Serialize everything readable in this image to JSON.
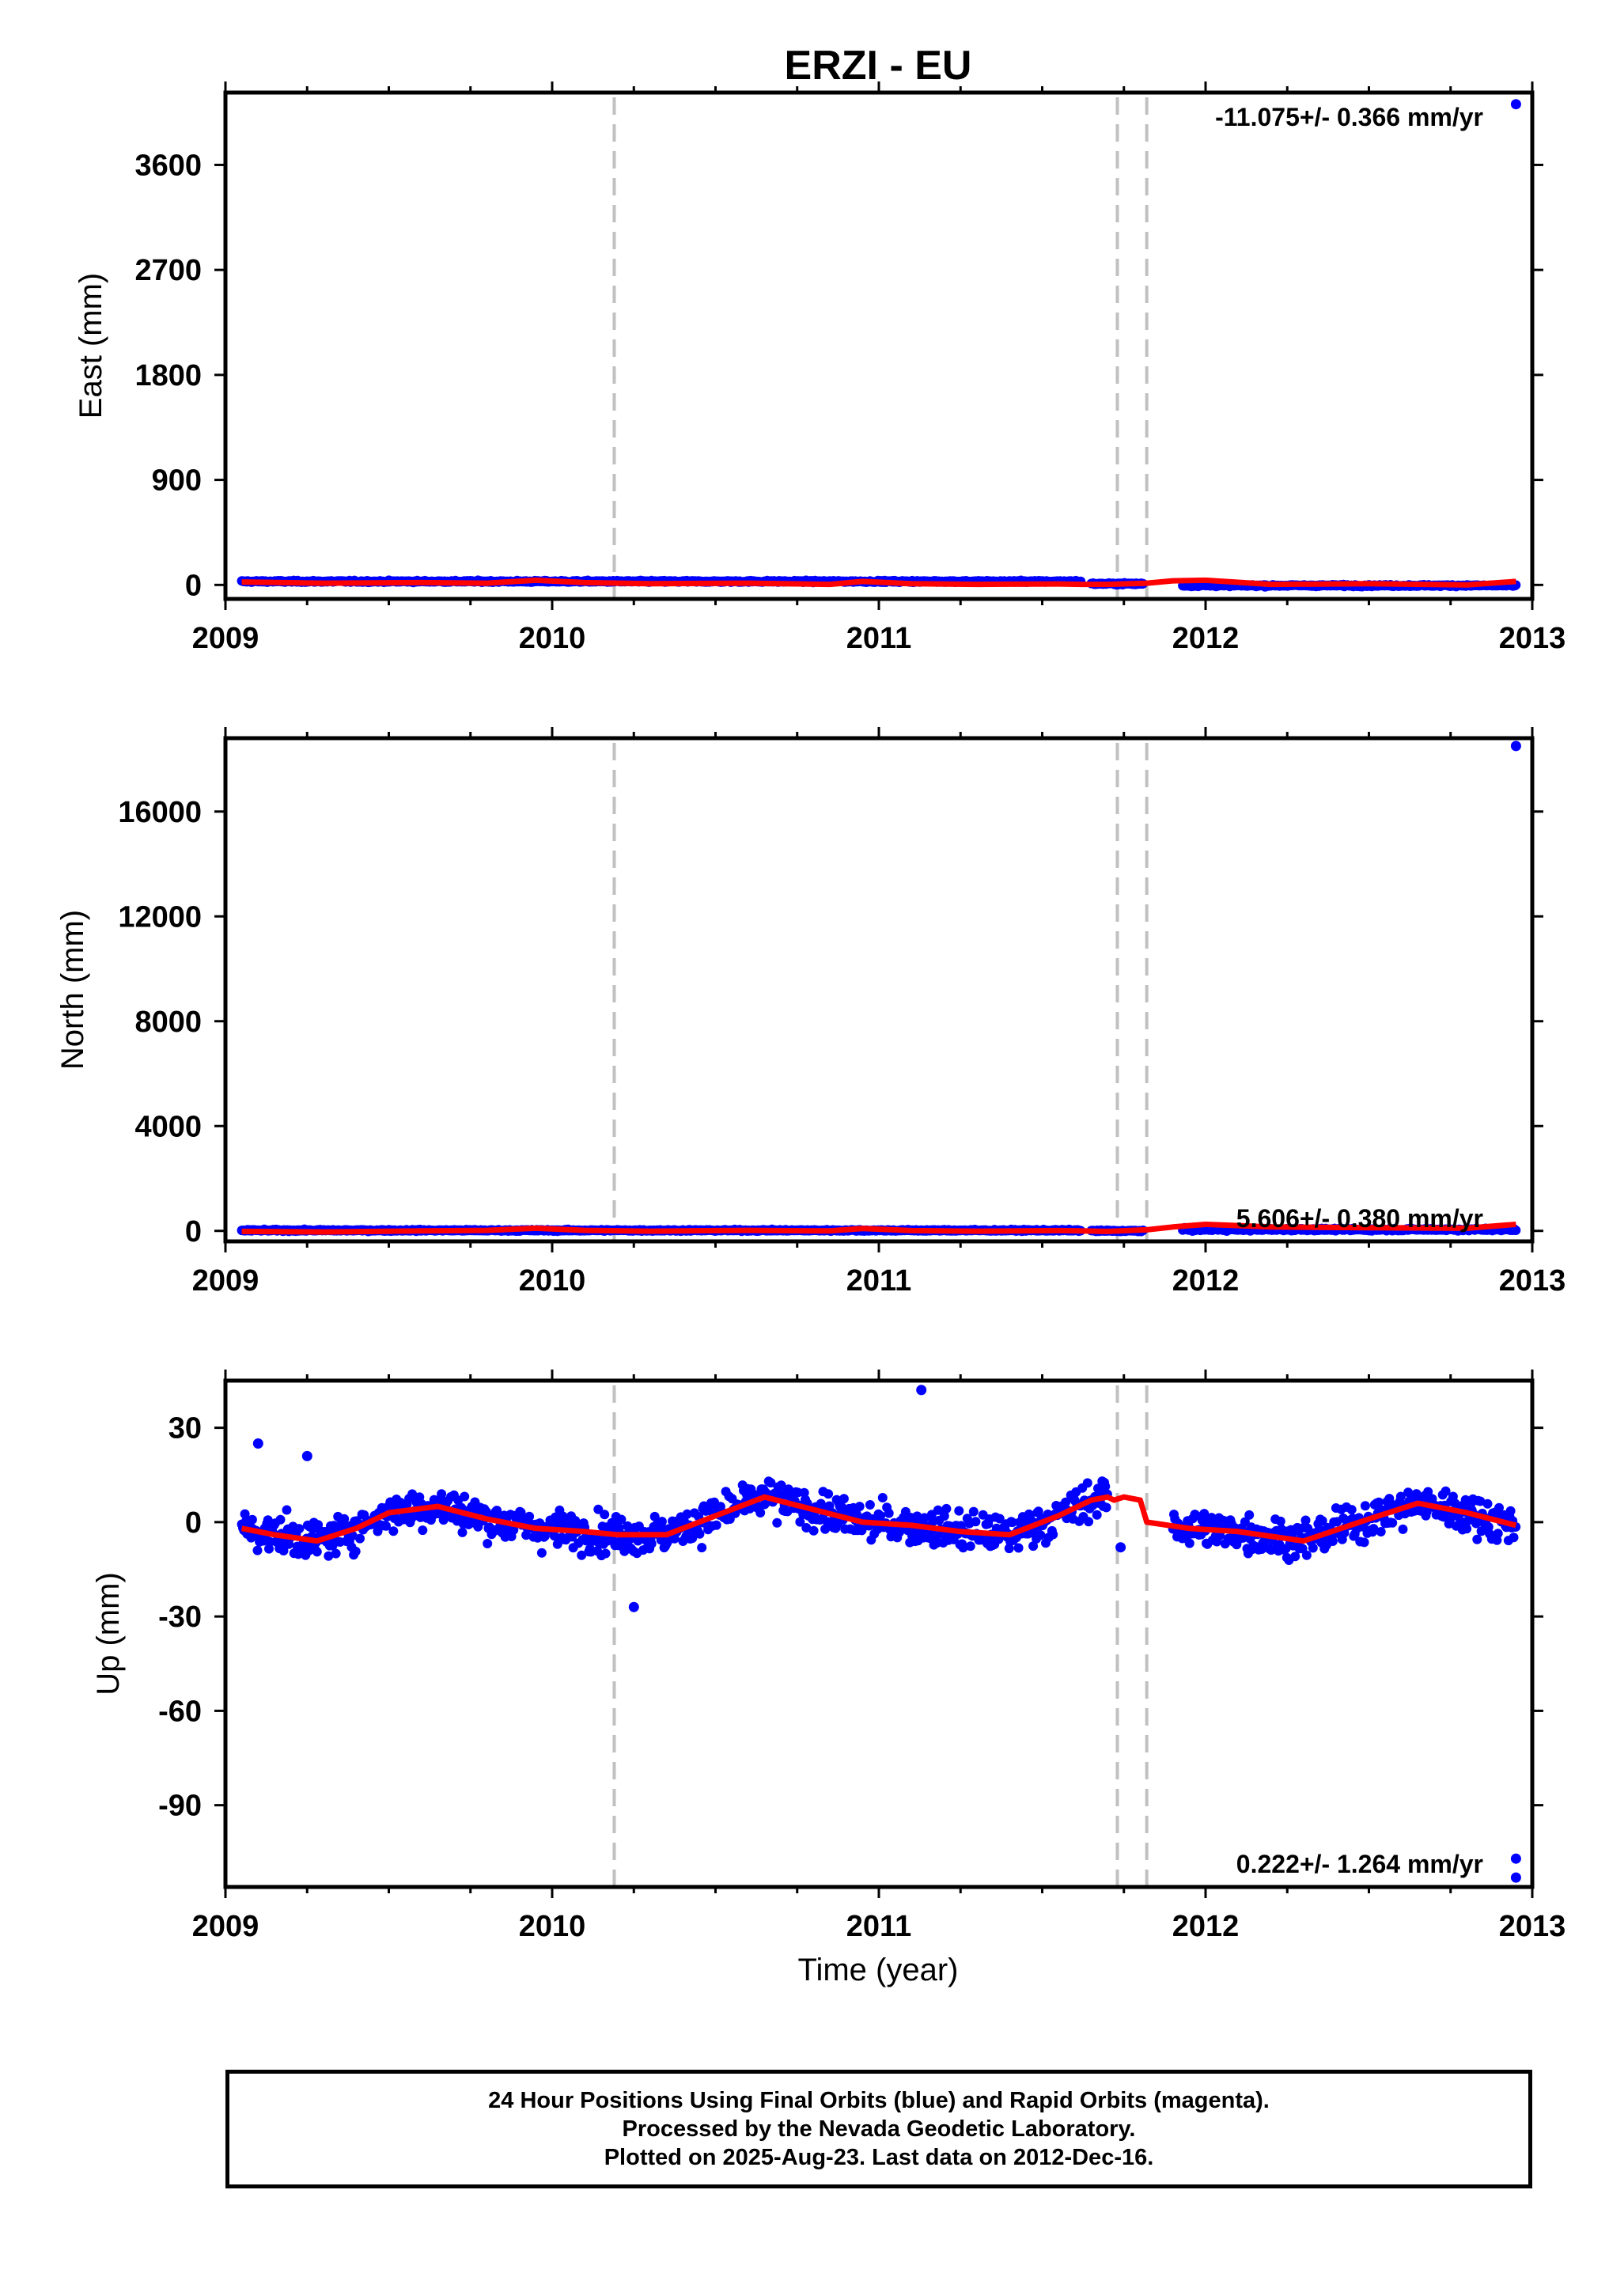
{
  "title": "ERZI - EU",
  "xlabel": "Time (year)",
  "footer": {
    "line1": "24 Hour Positions Using Final Orbits (blue) and Rapid Orbits (magenta).",
    "line2": "Processed by the Nevada Geodetic Laboratory.",
    "line3": "Plotted on 2025-Aug-23. Last data on 2012-Dec-16."
  },
  "colors": {
    "data": "#0000ff",
    "model": "#ff0000",
    "steps": "#c0c0c0",
    "axis": "#000000"
  },
  "chart_data": [
    {
      "type": "scatter",
      "component": "East",
      "ylabel": "East (mm)",
      "rate_text": "-11.075+/- 0.366 mm/yr",
      "xlim": [
        2009,
        2013
      ],
      "ylim": [
        -120,
        4220
      ],
      "yticks": [
        0,
        900,
        1800,
        2700,
        3600
      ],
      "xticks": [
        2009,
        2010,
        2011,
        2012,
        2013
      ],
      "step_lines": [
        2010.19,
        2011.73,
        2011.82
      ],
      "outliers": [
        [
          2012.95,
          4120
        ]
      ],
      "data_segments": [
        [
          2009.05,
          2011.62,
          30,
          5
        ],
        [
          2011.65,
          2011.81,
          10,
          5
        ],
        [
          2011.93,
          2012.95,
          -5,
          5
        ]
      ],
      "model": {
        "x": [
          2009.05,
          2009.3,
          2009.6,
          2009.8,
          2009.95,
          2010.1,
          2010.3,
          2010.6,
          2010.85,
          2010.95,
          2011.1,
          2011.3,
          2011.55,
          2011.62,
          2011.7,
          2011.82,
          2011.9,
          2012.0,
          2012.2,
          2012.5,
          2012.8,
          2012.95
        ],
        "y": [
          25,
          15,
          20,
          15,
          40,
          20,
          10,
          15,
          5,
          30,
          10,
          5,
          8,
          5,
          5,
          15,
          35,
          40,
          5,
          10,
          0,
          30
        ]
      }
    },
    {
      "type": "scatter",
      "component": "North",
      "ylabel": "North (mm)",
      "rate_text": "5.606+/- 0.380 mm/yr",
      "xlim": [
        2009,
        2013
      ],
      "ylim": [
        -400,
        18800
      ],
      "yticks": [
        0,
        4000,
        8000,
        12000,
        16000
      ],
      "xticks": [
        2009,
        2010,
        2011,
        2012,
        2013
      ],
      "step_lines": [
        2010.19,
        2011.73,
        2011.82
      ],
      "outliers": [
        [
          2012.95,
          18500
        ]
      ],
      "data_segments": [
        [
          2009.05,
          2011.62,
          20,
          20
        ],
        [
          2011.65,
          2011.81,
          0,
          20
        ],
        [
          2011.93,
          2012.95,
          50,
          30
        ]
      ],
      "model": {
        "x": [
          2009.05,
          2009.3,
          2009.6,
          2009.8,
          2009.95,
          2010.1,
          2010.3,
          2010.6,
          2010.85,
          2010.95,
          2011.1,
          2011.3,
          2011.55,
          2011.62,
          2011.7,
          2011.82,
          2011.9,
          2012.0,
          2012.2,
          2012.5,
          2012.8,
          2012.95
        ],
        "y": [
          -20,
          -40,
          0,
          20,
          100,
          20,
          -10,
          20,
          0,
          90,
          10,
          -10,
          10,
          0,
          -20,
          40,
          150,
          250,
          150,
          120,
          100,
          250
        ]
      }
    },
    {
      "type": "scatter",
      "component": "Up",
      "ylabel": "Up (mm)",
      "rate_text": "0.222+/- 1.264 mm/yr",
      "xlim": [
        2009,
        2013
      ],
      "ylim": [
        -116,
        45
      ],
      "yticks": [
        -90,
        -60,
        -30,
        0,
        30
      ],
      "xticks": [
        2009,
        2010,
        2011,
        2012,
        2013
      ],
      "step_lines": [
        2010.19,
        2011.73,
        2011.82
      ],
      "outliers": [
        [
          2009.1,
          25
        ],
        [
          2009.25,
          21
        ],
        [
          2010.25,
          -27
        ],
        [
          2011.13,
          42
        ],
        [
          2011.74,
          -8
        ],
        [
          2012.95,
          -107
        ],
        [
          2012.95,
          -113
        ]
      ],
      "model": {
        "x": [
          2009.05,
          2009.15,
          2009.28,
          2009.4,
          2009.5,
          2009.65,
          2009.8,
          2009.95,
          2010.1,
          2010.2,
          2010.35,
          2010.5,
          2010.65,
          2010.8,
          2010.95,
          2011.1,
          2011.25,
          2011.4,
          2011.55,
          2011.65,
          2011.7,
          2011.72,
          2011.75,
          2011.8,
          2011.82,
          2011.95,
          2012.1,
          2012.3,
          2012.5,
          2012.65,
          2012.8,
          2012.95
        ],
        "y": [
          -2,
          -4,
          -6,
          -2,
          3,
          5,
          1,
          -2,
          -3,
          -4,
          -4,
          2,
          8,
          4,
          0,
          -1,
          -3,
          -4,
          2,
          7,
          8,
          7,
          8,
          7,
          0,
          -2,
          -3,
          -6,
          1,
          6,
          3,
          -1
        ]
      },
      "noise_segments": [
        [
          2009.05,
          2011.7
        ],
        [
          2011.9,
          2012.95
        ]
      ]
    }
  ]
}
